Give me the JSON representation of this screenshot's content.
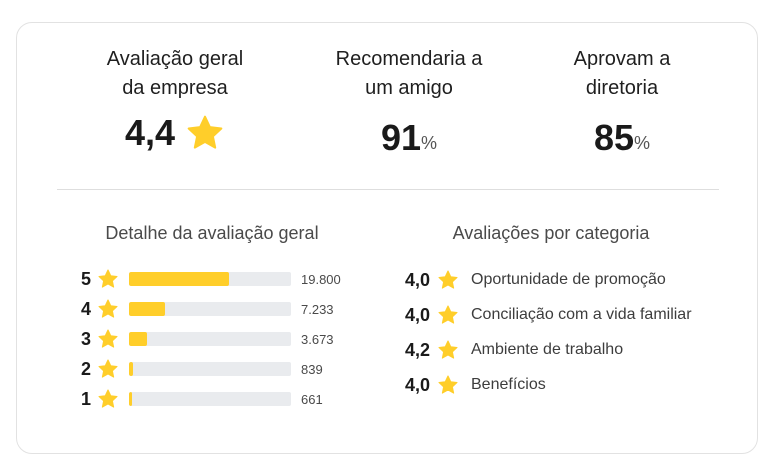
{
  "summary": {
    "overall": {
      "label": "Avaliação geral\nda empresa",
      "value": "4,4"
    },
    "recommend": {
      "label": "Recomendaria a\num amigo",
      "value": "91",
      "unit": "%"
    },
    "approve": {
      "label": "Aprovam a\ndiretoria",
      "value": "85",
      "unit": "%"
    }
  },
  "distribution": {
    "title": "Detalhe da avaliação geral",
    "rows": [
      {
        "stars": "5",
        "count": "19.800",
        "fraction": 0.62
      },
      {
        "stars": "4",
        "count": "7.233",
        "fraction": 0.22
      },
      {
        "stars": "3",
        "count": "3.673",
        "fraction": 0.11
      },
      {
        "stars": "2",
        "count": "839",
        "fraction": 0.025
      },
      {
        "stars": "1",
        "count": "661",
        "fraction": 0.02
      }
    ]
  },
  "categories": {
    "title": "Avaliações por categoria",
    "items": [
      {
        "score": "4,0",
        "label": "Oportunidade de promoção"
      },
      {
        "score": "4,0",
        "label": "Conciliação com a vida familiar"
      },
      {
        "score": "4,2",
        "label": "Ambiente de trabalho"
      },
      {
        "score": "4,0",
        "label": "Benefícios"
      }
    ]
  },
  "colors": {
    "star": "#ffce2a",
    "bar_fill": "#ffce2a",
    "bar_track": "#e9ebee"
  }
}
